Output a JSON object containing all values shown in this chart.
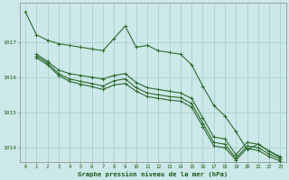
{
  "title": "Graphe pression niveau de la mer (hPa)",
  "background_color": "#cce8e8",
  "grid_color": "#aacfcf",
  "line_color": "#2d6b2d",
  "label_color": "#1a5c1a",
  "xlim": [
    -0.5,
    23.5
  ],
  "ylim": [
    1013.6,
    1018.1
  ],
  "yticks": [
    1014,
    1015,
    1016,
    1017
  ],
  "xticks": [
    0,
    1,
    2,
    3,
    4,
    5,
    6,
    7,
    8,
    9,
    10,
    11,
    12,
    13,
    14,
    15,
    16,
    17,
    18,
    19,
    20,
    21,
    22,
    23
  ],
  "line1_x": [
    0,
    1,
    2,
    3,
    4,
    5,
    6,
    7,
    8,
    9,
    10,
    11,
    12,
    13,
    14,
    15,
    16,
    17,
    18,
    19,
    20,
    21,
    22,
    23
  ],
  "line1_y": [
    1017.85,
    1017.2,
    1017.05,
    1016.95,
    1016.9,
    1016.85,
    1016.8,
    1016.75,
    1017.1,
    1017.45,
    1016.85,
    1016.9,
    1016.75,
    1016.7,
    1016.65,
    1016.35,
    1015.75,
    1015.2,
    1014.9,
    1014.45,
    1013.95,
    1014.1,
    1013.9,
    1013.75
  ],
  "line2_x": [
    1,
    2,
    3,
    4,
    5,
    6,
    7,
    8,
    9,
    10,
    11,
    12,
    13,
    14,
    15,
    16,
    17,
    18,
    19,
    20,
    21,
    22,
    23
  ],
  "line2_y": [
    1016.65,
    1016.45,
    1016.2,
    1016.1,
    1016.05,
    1016.0,
    1015.95,
    1016.05,
    1016.1,
    1015.85,
    1015.7,
    1015.65,
    1015.6,
    1015.55,
    1015.4,
    1014.85,
    1014.3,
    1014.25,
    1013.8,
    1014.15,
    1014.1,
    1013.9,
    1013.72
  ],
  "line3_x": [
    1,
    2,
    3,
    4,
    5,
    6,
    7,
    8,
    9,
    10,
    11,
    12,
    13,
    14,
    15,
    16,
    17,
    18,
    19,
    20,
    21,
    22,
    23
  ],
  "line3_y": [
    1016.6,
    1016.4,
    1016.1,
    1015.95,
    1015.88,
    1015.82,
    1015.75,
    1015.9,
    1015.95,
    1015.7,
    1015.55,
    1015.5,
    1015.45,
    1015.42,
    1015.25,
    1014.7,
    1014.15,
    1014.1,
    1013.7,
    1014.05,
    1014.0,
    1013.82,
    1013.68
  ],
  "line4_x": [
    1,
    2,
    3,
    4,
    5,
    6,
    7,
    8,
    9,
    10,
    11,
    12,
    13,
    14,
    15,
    16,
    17,
    18,
    19,
    20,
    21,
    22,
    23
  ],
  "line4_y": [
    1016.55,
    1016.35,
    1016.05,
    1015.88,
    1015.8,
    1015.73,
    1015.65,
    1015.78,
    1015.82,
    1015.6,
    1015.45,
    1015.4,
    1015.35,
    1015.32,
    1015.15,
    1014.6,
    1014.05,
    1014.0,
    1013.65,
    1013.98,
    1013.92,
    1013.75,
    1013.62
  ]
}
